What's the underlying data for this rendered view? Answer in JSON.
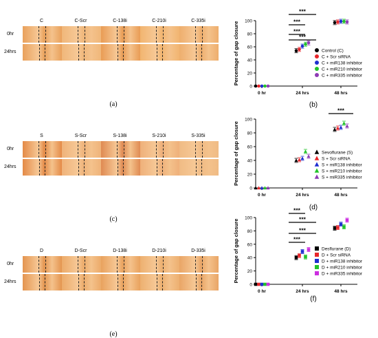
{
  "panels": [
    {
      "id": "a",
      "label": "(a)",
      "columns": [
        "C",
        "C-Scr",
        "C-138i",
        "C-210i",
        "C-335i"
      ],
      "rows": [
        "0hr",
        "24hrs"
      ],
      "tile_colors": [
        "#e9a15c",
        "#f0b77a",
        "#e99c55",
        "#f2b570",
        "#eeae6d"
      ]
    },
    {
      "id": "c",
      "label": "(c)",
      "columns": [
        "S",
        "S-Scr",
        "S-138i",
        "S-210i",
        "S-335i"
      ],
      "rows": [
        "0hr",
        "24hrs"
      ],
      "tile_colors": [
        "#e48a47",
        "#efb37a",
        "#df8a52",
        "#efb07a",
        "#f0bb84"
      ]
    },
    {
      "id": "e",
      "label": "(e)",
      "columns": [
        "D",
        "D-Scr",
        "D-138i",
        "D-210i",
        "D-335i"
      ],
      "rows": [
        "0hr",
        "24hrs"
      ],
      "tile_colors": [
        "#e49550",
        "#ecab6a",
        "#e9a25e",
        "#edb070",
        "#e9a566"
      ]
    }
  ],
  "chart_data": [
    {
      "id": "b",
      "label": "(b)",
      "type": "scatter",
      "ylabel": "Percentage of gap closure",
      "ylim": [
        0,
        100
      ],
      "yticks": [
        0,
        20,
        40,
        60,
        80,
        100
      ],
      "categories": [
        "0 hr",
        "24 hrs",
        "48 hrs"
      ],
      "marker": "circle",
      "series": [
        {
          "name": "Control (C)",
          "color": "#000000",
          "values": [
            0,
            54,
            97
          ]
        },
        {
          "name": "C + Scr siRNA",
          "color": "#e8262b",
          "values": [
            0,
            56,
            98
          ]
        },
        {
          "name": "C + miR138  inhibitor",
          "color": "#1f2fd0",
          "values": [
            0,
            61,
            99
          ]
        },
        {
          "name": "C + miR210  inhibitor",
          "color": "#22c32a",
          "values": [
            0,
            64,
            99
          ]
        },
        {
          "name": "C + miR335  inhibitor",
          "color": "#8e3bb5",
          "values": [
            0,
            66,
            98
          ]
        }
      ],
      "significance": [
        "***",
        "***",
        "***"
      ]
    },
    {
      "id": "d",
      "label": "(d)",
      "type": "scatter",
      "ylabel": "Percentage of gap closure",
      "ylim": [
        0,
        100
      ],
      "yticks": [
        0,
        20,
        40,
        60,
        80,
        100
      ],
      "categories": [
        "0 hr",
        "24 hrs",
        "48 hrs"
      ],
      "marker": "triangle",
      "series": [
        {
          "name": "Sevoflurane (S)",
          "color": "#000000",
          "values": [
            0,
            40,
            85
          ]
        },
        {
          "name": "S + Scr siRNA",
          "color": "#e8262b",
          "values": [
            0,
            41,
            87
          ]
        },
        {
          "name": "S + miR138  inhibitor",
          "color": "#1f2fd0",
          "values": [
            0,
            43,
            88
          ]
        },
        {
          "name": "S + miR210  inhibitor",
          "color": "#22c32a",
          "values": [
            0,
            53,
            94
          ]
        },
        {
          "name": "S + miR335  inhibitor",
          "color": "#8e3bb5",
          "values": [
            0,
            46,
            90
          ]
        }
      ],
      "significance": [
        "***",
        "***"
      ]
    },
    {
      "id": "f",
      "label": "(f)",
      "type": "scatter",
      "ylabel": "Percentage of gap closure",
      "ylim": [
        0,
        100
      ],
      "yticks": [
        0,
        20,
        40,
        60,
        80,
        100
      ],
      "categories": [
        "0 hr",
        "24 hrs",
        "48 hrs"
      ],
      "marker": "square",
      "series": [
        {
          "name": "Desflurane (D)",
          "color": "#000000",
          "values": [
            0,
            40,
            84
          ]
        },
        {
          "name": "D + Scr siRNA",
          "color": "#e8262b",
          "values": [
            0,
            43,
            85
          ]
        },
        {
          "name": "D + miR138  inhibitor",
          "color": "#1f2fd0",
          "values": [
            0,
            49,
            90
          ]
        },
        {
          "name": "D + miR210  inhibitor",
          "color": "#22c32a",
          "values": [
            0,
            41,
            86
          ]
        },
        {
          "name": "D + miR335  inhibitor",
          "color": "#cc2fe0",
          "values": [
            0,
            52,
            96
          ]
        }
      ],
      "significance": [
        "***",
        "***",
        "***",
        "***"
      ]
    }
  ]
}
